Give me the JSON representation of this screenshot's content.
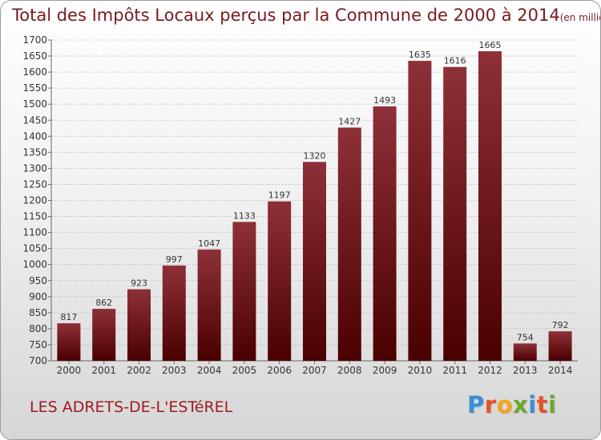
{
  "header": {
    "title": "Total des Impôts Locaux perçus par la Commune de 2000 à 2014",
    "unit": "(en milliers d'€)"
  },
  "footer": {
    "commune": "LES ADRETS-DE-L'ESTéREL",
    "logo_letters": [
      "P",
      "r",
      "o",
      "x",
      "i",
      "t",
      "i"
    ],
    "logo_colors": [
      "#3a8fd6",
      "#e5532a",
      "#f2a516",
      "#6aaa2a",
      "#3a8fd6",
      "#e5532a",
      "#6aaa2a"
    ]
  },
  "chart_data": {
    "type": "bar",
    "categories": [
      "2000",
      "2001",
      "2002",
      "2003",
      "2004",
      "2005",
      "2006",
      "2007",
      "2008",
      "2009",
      "2010",
      "2011",
      "2012",
      "2013",
      "2014"
    ],
    "values": [
      817,
      862,
      923,
      997,
      1047,
      1133,
      1197,
      1320,
      1427,
      1493,
      1635,
      1616,
      1665,
      754,
      792
    ],
    "ylim": [
      700,
      1700
    ],
    "yticks": [
      700,
      750,
      800,
      850,
      900,
      950,
      1000,
      1050,
      1100,
      1150,
      1200,
      1250,
      1300,
      1350,
      1400,
      1450,
      1500,
      1550,
      1600,
      1650,
      1700
    ],
    "grid": true,
    "colors": {
      "bar_top": "#8e3038",
      "bar_bottom": "#4a0000",
      "text": "#333333",
      "grid": "#bbbbbb"
    }
  }
}
